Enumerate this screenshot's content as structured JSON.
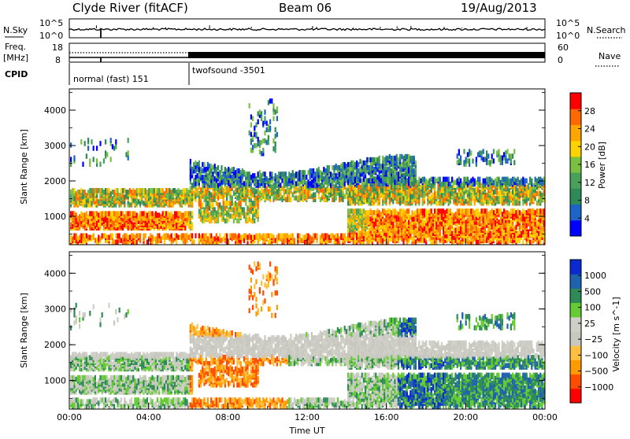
{
  "header": {
    "title": "Clyde River (fitACF)",
    "beam": "Beam 06",
    "date": "19/Aug/2013"
  },
  "nsky_panel": {
    "left_label": "N.Sky",
    "right_label": "N.Search",
    "left_ticks": [
      "10^5",
      "10^0"
    ],
    "right_ticks": [
      "10^5",
      "10^0"
    ]
  },
  "freq_panel": {
    "left_label_1": "Freq.",
    "left_label_2": "[MHz]",
    "right_label": "Nave",
    "left_ticks": [
      "18",
      "8"
    ],
    "right_ticks": [
      "60",
      "0"
    ],
    "cpid_label": "CPID",
    "segments": [
      {
        "label": "normal (fast) 151",
        "start_hour": 0,
        "end_hour": 6
      },
      {
        "label": "twofsound -3501",
        "start_hour": 6,
        "end_hour": 24
      }
    ]
  },
  "colors": {
    "power": [
      "#0000ff",
      "#1c64c8",
      "#2e8b57",
      "#49a05a",
      "#7ac142",
      "#ffd200",
      "#ffa500",
      "#ff6a00",
      "#ff0000"
    ],
    "velocity": [
      "#ff0000",
      "#ff4c00",
      "#ff9a00",
      "#ffc040",
      "#c8c8c0",
      "#cfcfc8",
      "#66cc33",
      "#2e8b57",
      "#1f62b0",
      "#0a2ad0"
    ]
  },
  "chart_data": [
    {
      "type": "heatmap",
      "title": "Power",
      "ylabel": "Slant Range [km]",
      "xlabel": "Time UT",
      "x_ticks": [
        "00:00",
        "04:00",
        "08:00",
        "12:00",
        "16:00",
        "20:00",
        "00:00"
      ],
      "xlim_hours": [
        0,
        24
      ],
      "ylim": [
        200,
        4600
      ],
      "y_ticks": [
        1000,
        2000,
        3000,
        4000
      ],
      "colorbar_label": "Power [dB]",
      "colorbar_ticks": [
        4,
        8,
        12,
        16,
        20,
        24,
        28
      ],
      "colorbar_range": [
        0,
        30
      ]
    },
    {
      "type": "heatmap",
      "title": "Velocity",
      "ylabel": "Slant Range [km]",
      "xlabel": "Time UT",
      "x_ticks": [
        "00:00",
        "04:00",
        "08:00",
        "12:00",
        "16:00",
        "20:00",
        "00:00"
      ],
      "xlim_hours": [
        0,
        24
      ],
      "ylim": [
        200,
        4600
      ],
      "y_ticks": [
        1000,
        2000,
        3000,
        4000
      ],
      "colorbar_label": "Velocity [m s^-1]",
      "colorbar_ticks": [
        "1000",
        "500",
        "100",
        "25",
        "−25",
        "−100",
        "−500",
        "−1000"
      ]
    }
  ],
  "footer": {
    "xlabel": "Time UT"
  }
}
